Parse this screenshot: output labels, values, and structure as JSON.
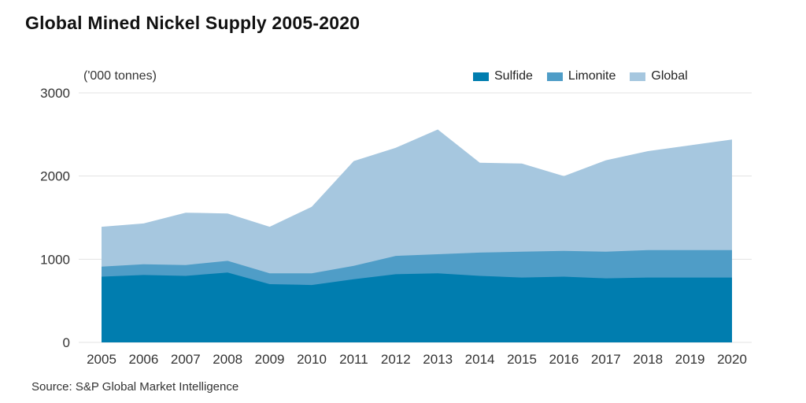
{
  "title": "Global Mined Nickel Supply 2005-2020",
  "unit_label": "('000 tonnes)",
  "source": "Source: S&P Global Market Intelligence",
  "legend": [
    {
      "label": "Sulfide",
      "color": "#007daf"
    },
    {
      "label": "Limonite",
      "color": "#4f9dc7"
    },
    {
      "label": "Global",
      "color": "#a6c7df"
    }
  ],
  "chart_data": {
    "type": "area",
    "stacked": false,
    "title": "Global Mined Nickel Supply 2005-2020",
    "xlabel": "",
    "ylabel": "('000 tonnes)",
    "ylim": [
      0,
      3000
    ],
    "yticks": [
      0,
      1000,
      2000,
      3000
    ],
    "grid": true,
    "legend_position": "top-right",
    "x": [
      "2005",
      "2006",
      "2007",
      "2008",
      "2009",
      "2010",
      "2011",
      "2012",
      "2013",
      "2014",
      "2015",
      "2016",
      "2017",
      "2018",
      "2019",
      "2020"
    ],
    "series": [
      {
        "name": "Global",
        "color": "#a6c7df",
        "values": [
          1390,
          1430,
          1560,
          1550,
          1390,
          1630,
          2180,
          2340,
          2560,
          2160,
          2150,
          2000,
          2190,
          2300,
          2370,
          2440
        ]
      },
      {
        "name": "Limonite",
        "color": "#4f9dc7",
        "values": [
          910,
          940,
          930,
          980,
          830,
          830,
          920,
          1040,
          1060,
          1080,
          1090,
          1100,
          1090,
          1110,
          1110,
          1110
        ]
      },
      {
        "name": "Sulfide",
        "color": "#007daf",
        "values": [
          790,
          810,
          800,
          840,
          700,
          690,
          760,
          820,
          830,
          800,
          780,
          790,
          770,
          780,
          780,
          780
        ]
      }
    ]
  }
}
